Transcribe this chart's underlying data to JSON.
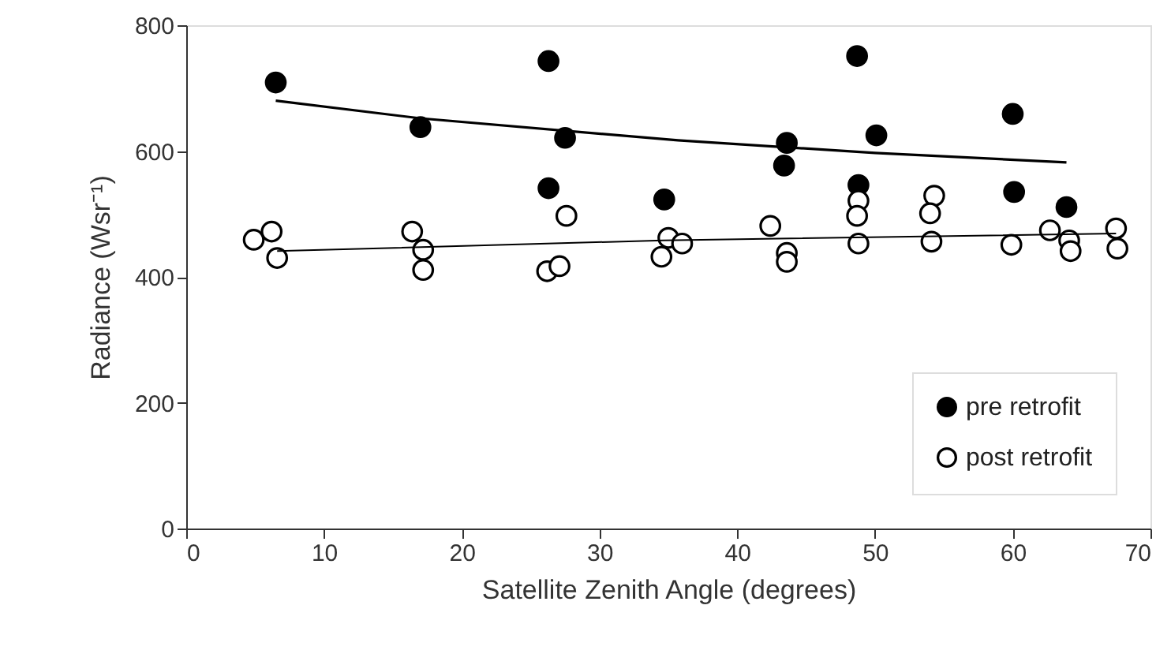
{
  "chart_data": {
    "type": "scatter",
    "xlabel": "Satellite Zenith Angle (degrees)",
    "ylabel": "Radiance (Wsr⁻¹)",
    "xlim": [
      0,
      70
    ],
    "xticks": [
      0,
      10,
      20,
      30,
      40,
      50,
      60,
      70
    ],
    "ylim": [
      0,
      800
    ],
    "yticks": [
      0,
      200,
      400,
      600,
      800
    ],
    "grid": false,
    "legend": "bottom right",
    "series": [
      {
        "name": "pre retrofit",
        "marker": "circle",
        "color": "#000000",
        "x": [
          6.5,
          17.0,
          26.3,
          27.5,
          26.3,
          34.7,
          43.6,
          43.4,
          48.7,
          50.1,
          48.8,
          60.0,
          60.1,
          63.9
        ],
        "values": [
          709,
          638,
          743,
          621,
          541,
          523,
          613,
          577,
          751,
          625,
          546,
          659,
          535,
          511
        ]
      },
      {
        "name": "post retrofit",
        "marker": "circle",
        "color": "#000000",
        "x": [
          4.9,
          6.2,
          6.6,
          16.4,
          17.2,
          17.2,
          27.6,
          26.2,
          27.1,
          35.0,
          34.5,
          36.0,
          42.4,
          43.6,
          43.6,
          48.8,
          48.7,
          48.8,
          54.3,
          54.0,
          54.1,
          59.9,
          62.7,
          64.1,
          64.2,
          67.5,
          67.6
        ],
        "values": [
          459,
          472,
          430,
          472,
          443,
          411,
          497,
          409,
          417,
          462,
          432,
          453,
          481,
          438,
          424,
          521,
          497,
          453,
          529,
          501,
          456,
          451,
          474,
          458,
          441,
          477,
          445
        ]
      },
      {
        "type": "line",
        "color": "#000000",
        "x": [
          6.5,
          17.0,
          35.7,
          50.0,
          63.9
        ],
        "values": [
          680,
          652,
          617,
          597,
          582
        ]
      },
      {
        "type": "line",
        "color": "#000000",
        "x": [
          6.6,
          34.6,
          67.5
        ],
        "values": [
          441,
          458,
          469
        ]
      }
    ]
  }
}
